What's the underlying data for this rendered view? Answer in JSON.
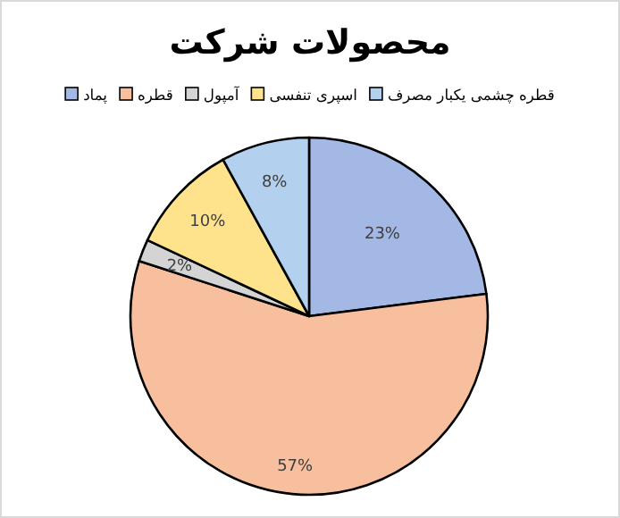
{
  "chart_data": {
    "type": "pie",
    "title": "محصولات شرکت",
    "categories": [
      "پماد",
      "قطره",
      "آمپول",
      "اسپری تنفسی",
      "قطره چشمی یکبار مصرف"
    ],
    "values": [
      23,
      57,
      2,
      10,
      8
    ],
    "colors": [
      "#a3b8e4",
      "#f7bf9e",
      "#d4d4d4",
      "#ffe38c",
      "#b3d0ee"
    ],
    "value_labels": [
      "23%",
      "57%",
      "2%",
      "10%",
      "8%"
    ],
    "legend": "top"
  }
}
